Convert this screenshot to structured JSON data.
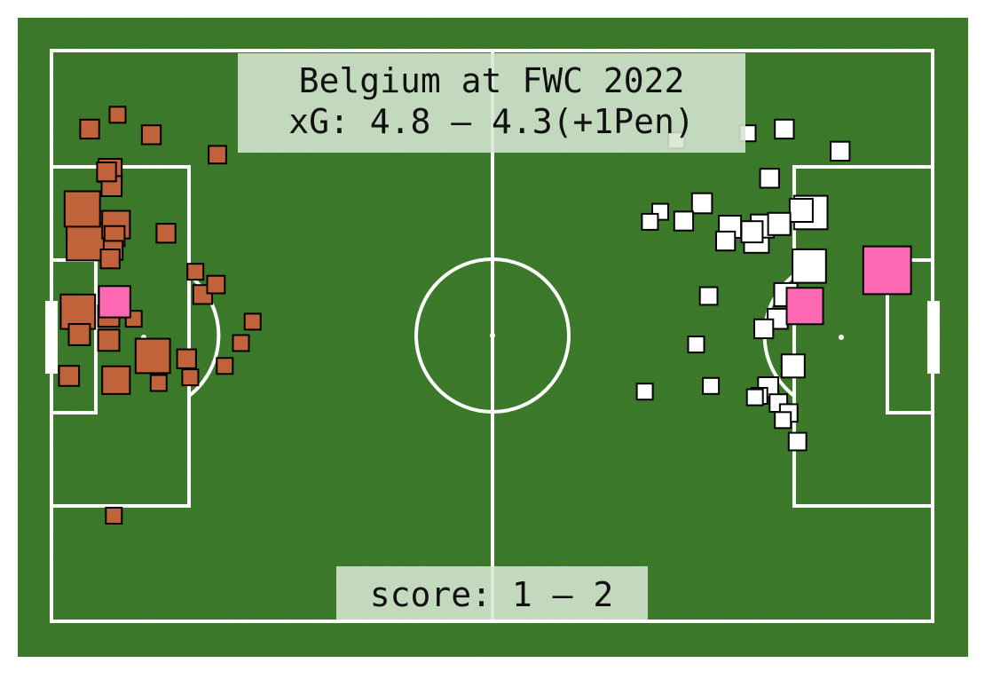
{
  "chart_data": {
    "type": "scatter",
    "title_line1": "Belgium at FWC 2022",
    "title_line2": "xG: 4.8 – 4.3(+1Pen)",
    "score_label": "score: 1 – 2",
    "pitch": {
      "length": 120,
      "width": 80
    },
    "colors": {
      "grass": "#3f7f2f",
      "lines": "#ffffff",
      "team_left_shot": "#c0623a",
      "team_right_shot": "#ffffff",
      "goal": "#ff69b4",
      "shot_edge": "#000000",
      "label_box": "#d6e6d2"
    },
    "series": [
      {
        "side": "left",
        "shots": [
          {
            "x": 9.0,
            "y": 9.0,
            "xg": 0.01
          },
          {
            "x": 5.2,
            "y": 11.0,
            "xg": 0.02
          },
          {
            "x": 13.6,
            "y": 11.8,
            "xg": 0.02
          },
          {
            "x": 22.6,
            "y": 14.6,
            "xg": 0.015
          },
          {
            "x": 8.0,
            "y": 16.8,
            "xg": 0.04
          },
          {
            "x": 7.5,
            "y": 17.0,
            "xg": 0.02
          },
          {
            "x": 8.2,
            "y": 19.0,
            "xg": 0.025
          },
          {
            "x": 4.2,
            "y": 22.2,
            "xg": 0.14
          },
          {
            "x": 8.8,
            "y": 24.4,
            "xg": 0.07
          },
          {
            "x": 15.6,
            "y": 25.6,
            "xg": 0.02
          },
          {
            "x": 4.6,
            "y": 26.8,
            "xg": 0.16
          },
          {
            "x": 8.6,
            "y": 26.0,
            "xg": 0.025
          },
          {
            "x": 8.4,
            "y": 28.0,
            "xg": 0.02
          },
          {
            "x": 8.0,
            "y": 29.2,
            "xg": 0.02
          },
          {
            "x": 19.6,
            "y": 31.0,
            "xg": 0.01
          },
          {
            "x": 22.4,
            "y": 32.8,
            "xg": 0.015
          },
          {
            "x": 20.6,
            "y": 34.2,
            "xg": 0.02
          },
          {
            "x": 3.6,
            "y": 36.6,
            "xg": 0.13
          },
          {
            "x": 7.8,
            "y": 37.2,
            "xg": 0.03
          },
          {
            "x": 11.2,
            "y": 37.6,
            "xg": 0.01
          },
          {
            "x": 3.8,
            "y": 39.8,
            "xg": 0.03
          },
          {
            "x": 7.8,
            "y": 40.6,
            "xg": 0.03
          },
          {
            "x": 27.4,
            "y": 38.0,
            "xg": 0.01
          },
          {
            "x": 25.8,
            "y": 41.0,
            "xg": 0.01
          },
          {
            "x": 13.8,
            "y": 42.8,
            "xg": 0.13
          },
          {
            "x": 18.4,
            "y": 43.2,
            "xg": 0.02
          },
          {
            "x": 23.6,
            "y": 44.2,
            "xg": 0.01
          },
          {
            "x": 2.4,
            "y": 45.6,
            "xg": 0.025
          },
          {
            "x": 8.8,
            "y": 46.2,
            "xg": 0.07
          },
          {
            "x": 14.6,
            "y": 46.6,
            "xg": 0.01
          },
          {
            "x": 18.9,
            "y": 45.8,
            "xg": 0.01
          },
          {
            "x": 8.5,
            "y": 65.2,
            "xg": 0.01
          }
        ],
        "goals": [
          {
            "x": 8.6,
            "y": 35.2,
            "xg": 0.1
          }
        ]
      },
      {
        "side": "right",
        "shots": [
          {
            "x": 85.1,
            "y": 12.6,
            "xg": 0.01
          },
          {
            "x": 94.8,
            "y": 11.6,
            "xg": 0.01
          },
          {
            "x": 99.8,
            "y": 11.0,
            "xg": 0.02
          },
          {
            "x": 107.4,
            "y": 14.1,
            "xg": 0.02
          },
          {
            "x": 97.8,
            "y": 17.9,
            "xg": 0.02
          },
          {
            "x": 88.6,
            "y": 21.4,
            "xg": 0.025
          },
          {
            "x": 82.9,
            "y": 22.6,
            "xg": 0.01
          },
          {
            "x": 86.1,
            "y": 23.9,
            "xg": 0.02
          },
          {
            "x": 81.5,
            "y": 24.0,
            "xg": 0.01
          },
          {
            "x": 92.4,
            "y": 24.7,
            "xg": 0.035
          },
          {
            "x": 91.8,
            "y": 26.7,
            "xg": 0.02
          },
          {
            "x": 96.8,
            "y": 24.6,
            "xg": 0.04
          },
          {
            "x": 99.1,
            "y": 24.3,
            "xg": 0.035
          },
          {
            "x": 102.1,
            "y": 22.4,
            "xg": 0.04
          },
          {
            "x": 103.4,
            "y": 22.7,
            "xg": 0.12
          },
          {
            "x": 95.4,
            "y": 25.4,
            "xg": 0.03
          },
          {
            "x": 96.0,
            "y": 26.6,
            "xg": 0.05
          },
          {
            "x": 103.2,
            "y": 30.2,
            "xg": 0.12
          },
          {
            "x": 100.0,
            "y": 34.2,
            "xg": 0.04
          },
          {
            "x": 89.5,
            "y": 34.4,
            "xg": 0.015
          },
          {
            "x": 98.9,
            "y": 37.6,
            "xg": 0.025
          },
          {
            "x": 97.0,
            "y": 39.0,
            "xg": 0.02
          },
          {
            "x": 87.8,
            "y": 41.2,
            "xg": 0.01
          },
          {
            "x": 101.0,
            "y": 44.2,
            "xg": 0.04
          },
          {
            "x": 80.8,
            "y": 47.8,
            "xg": 0.01
          },
          {
            "x": 89.8,
            "y": 47.0,
            "xg": 0.01
          },
          {
            "x": 97.6,
            "y": 47.2,
            "xg": 0.025
          },
          {
            "x": 96.4,
            "y": 48.4,
            "xg": 0.01
          },
          {
            "x": 95.8,
            "y": 48.6,
            "xg": 0.01
          },
          {
            "x": 99.0,
            "y": 49.4,
            "xg": 0.015
          },
          {
            "x": 100.4,
            "y": 50.8,
            "xg": 0.015
          },
          {
            "x": 99.6,
            "y": 51.8,
            "xg": 0.01
          },
          {
            "x": 101.6,
            "y": 54.8,
            "xg": 0.015
          }
        ],
        "goals": [
          {
            "x": 113.8,
            "y": 30.8,
            "xg": 0.3
          },
          {
            "x": 102.6,
            "y": 35.8,
            "xg": 0.15
          }
        ]
      }
    ]
  }
}
